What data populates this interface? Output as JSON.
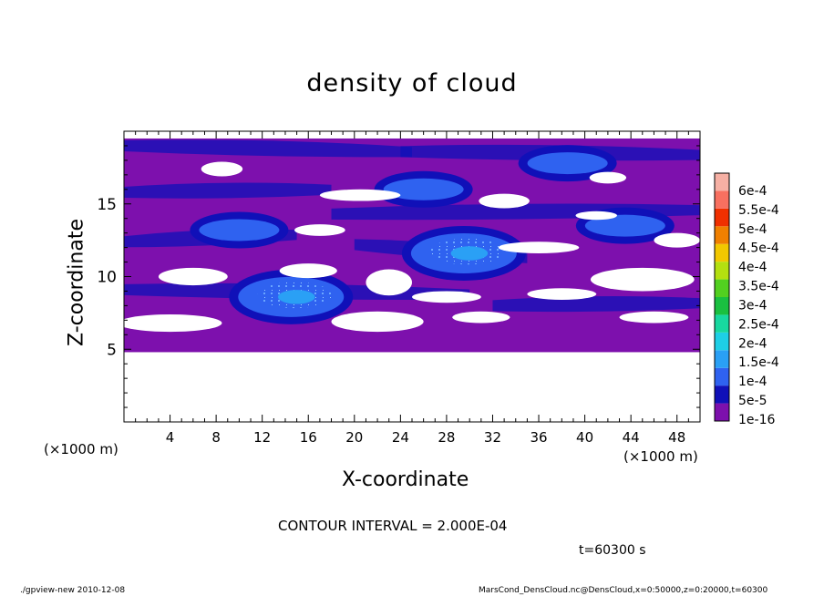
{
  "chart_data": {
    "type": "heatmap",
    "title": "density of cloud",
    "xlabel": "X-coordinate",
    "ylabel": "Z-coordinate",
    "x_unit_left": "(×1000 m)",
    "x_unit_right": "(×1000 m)",
    "xlim": [
      0,
      50
    ],
    "ylim": [
      0,
      20
    ],
    "x_ticks": [
      4,
      8,
      12,
      16,
      20,
      24,
      28,
      32,
      36,
      40,
      44,
      48
    ],
    "y_ticks": [
      5,
      10,
      15
    ],
    "cloud_region_z": [
      4.8,
      19.5
    ],
    "colorbar": {
      "levels": [
        "1e-16",
        "5e-5",
        "1e-4",
        "1.5e-4",
        "2e-4",
        "2.5e-4",
        "3e-4",
        "3.5e-4",
        "4e-4",
        "4.5e-4",
        "5e-4",
        "5.5e-4",
        "6e-4"
      ],
      "colors": [
        "#7d10ad",
        "#1010b8",
        "#2f62f0",
        "#2aa0f5",
        "#1ecfe6",
        "#18d8a0",
        "#1ac040",
        "#52d020",
        "#b4e010",
        "#f2c800",
        "#f08000",
        "#f03000",
        "#f87060",
        "#f6b0a4"
      ]
    },
    "blobs": [
      {
        "x": 14.5,
        "z": 8.6,
        "level": 3
      },
      {
        "x": 29.5,
        "z": 11.6,
        "level": 3
      },
      {
        "x": 43.5,
        "z": 13.5,
        "level": 2
      },
      {
        "x": 10.0,
        "z": 13.2,
        "level": 2
      },
      {
        "x": 38.5,
        "z": 17.8,
        "level": 1
      },
      {
        "x": 26.0,
        "z": 16.0,
        "level": 1
      }
    ],
    "contour_interval": "CONTOUR INTERVAL = 2.000E-04",
    "time": "t=60300 s"
  },
  "footer": {
    "left": "./gpview-new   2010-12-08",
    "right": "MarsCond_DensCloud.nc@DensCloud,x=0:50000,z=0:20000,t=60300"
  }
}
